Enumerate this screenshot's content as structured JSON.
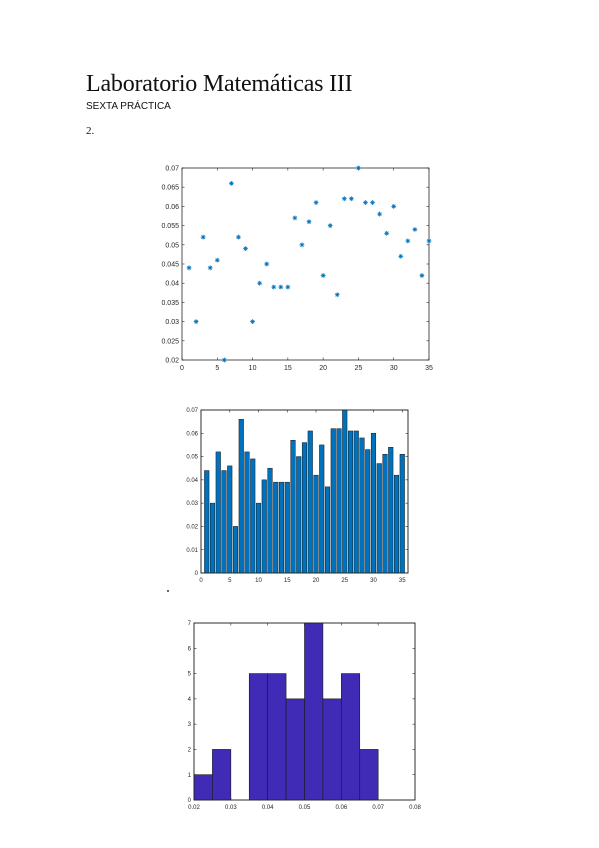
{
  "document": {
    "title": "Laboratorio Matemáticas III",
    "subtitle": "SEXTA PRÁCTICA",
    "section_number": "2."
  },
  "colors": {
    "scatter_marker": "#0072bd",
    "bar_fill": "#0072bd",
    "hist_fill": "#3f2bb5"
  },
  "chart_data": [
    {
      "type": "scatter",
      "marker": "asterisk",
      "x": [
        1,
        2,
        3,
        4,
        5,
        6,
        7,
        8,
        9,
        10,
        11,
        12,
        13,
        14,
        15,
        16,
        17,
        18,
        19,
        20,
        21,
        22,
        23,
        24,
        25,
        26,
        27,
        28,
        29,
        30,
        31,
        32,
        33,
        34,
        35
      ],
      "y": [
        0.044,
        0.03,
        0.052,
        0.044,
        0.046,
        0.02,
        0.066,
        0.052,
        0.049,
        0.03,
        0.04,
        0.045,
        0.039,
        0.039,
        0.039,
        0.057,
        0.05,
        0.056,
        0.061,
        0.042,
        0.055,
        0.037,
        0.062,
        0.062,
        0.07,
        0.061,
        0.061,
        0.058,
        0.053,
        0.06,
        0.047,
        0.051,
        0.054,
        0.042,
        0.051
      ],
      "xlim": [
        0,
        35
      ],
      "ylim": [
        0.02,
        0.07
      ],
      "xticks": [
        "0",
        "5",
        "10",
        "15",
        "20",
        "25",
        "30",
        "35"
      ],
      "yticks": [
        "0.02",
        "0.025",
        "0.03",
        "0.035",
        "0.04",
        "0.045",
        "0.05",
        "0.055",
        "0.06",
        "0.065",
        "0.07"
      ]
    },
    {
      "type": "bar",
      "categories": [
        1,
        2,
        3,
        4,
        5,
        6,
        7,
        8,
        9,
        10,
        11,
        12,
        13,
        14,
        15,
        16,
        17,
        18,
        19,
        20,
        21,
        22,
        23,
        24,
        25,
        26,
        27,
        28,
        29,
        30,
        31,
        32,
        33,
        34,
        35
      ],
      "values": [
        0.044,
        0.03,
        0.052,
        0.044,
        0.046,
        0.02,
        0.066,
        0.052,
        0.049,
        0.03,
        0.04,
        0.045,
        0.039,
        0.039,
        0.039,
        0.057,
        0.05,
        0.056,
        0.061,
        0.042,
        0.055,
        0.037,
        0.062,
        0.062,
        0.07,
        0.061,
        0.061,
        0.058,
        0.053,
        0.06,
        0.047,
        0.051,
        0.054,
        0.042,
        0.051
      ],
      "xlim": [
        0,
        36
      ],
      "ylim": [
        0,
        0.07
      ],
      "xticks": [
        "0",
        "5",
        "10",
        "15",
        "20",
        "25",
        "30",
        "35"
      ],
      "yticks": [
        "0",
        "0.01",
        "0.02",
        "0.03",
        "0.04",
        "0.05",
        "0.06",
        "0.07"
      ]
    },
    {
      "type": "bar",
      "subtype": "histogram",
      "bin_edges": [
        0.02,
        0.025,
        0.03,
        0.035,
        0.04,
        0.045,
        0.05,
        0.055,
        0.06,
        0.065,
        0.07
      ],
      "values": [
        1,
        2,
        0,
        5,
        5,
        4,
        7,
        4,
        5,
        2
      ],
      "xlim": [
        0.02,
        0.08
      ],
      "ylim": [
        0,
        7
      ],
      "xticks": [
        "0.02",
        "0.03",
        "0.04",
        "0.05",
        "0.06",
        "0.07",
        "0.08"
      ],
      "yticks": [
        "0",
        "1",
        "2",
        "3",
        "4",
        "5",
        "6",
        "7"
      ]
    }
  ]
}
